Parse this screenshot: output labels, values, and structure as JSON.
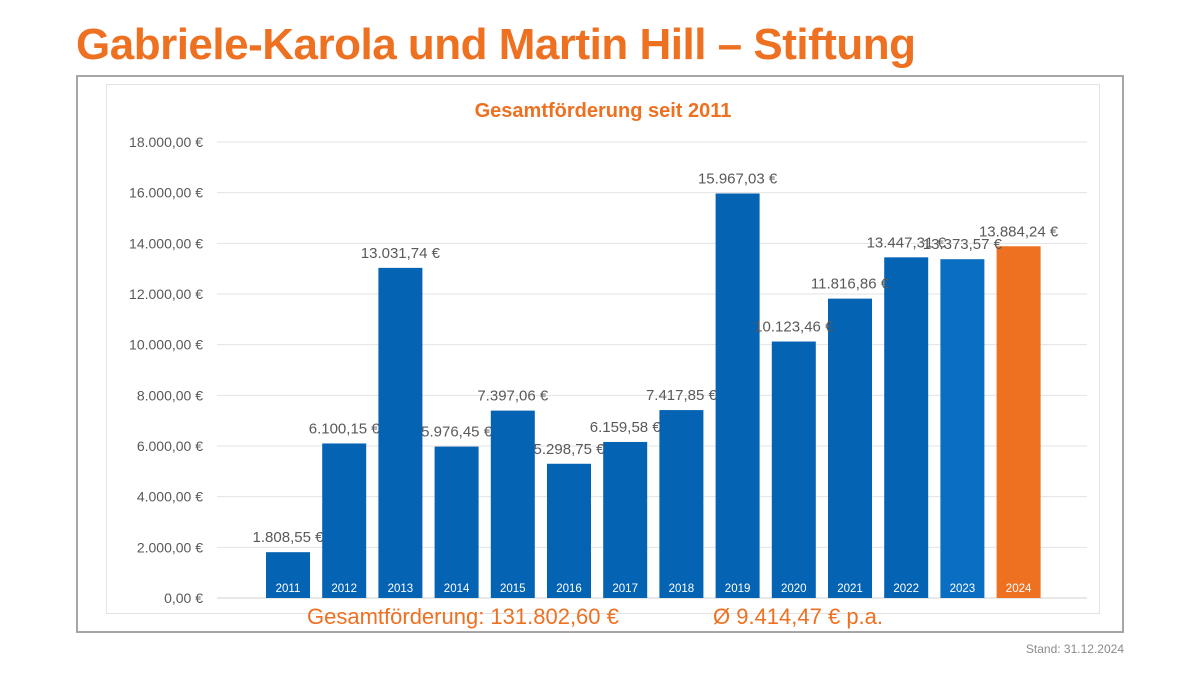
{
  "page": {
    "title": "Gabriele-Karola und Martin Hill – Stiftung",
    "stand": "Stand: 31.12.2024"
  },
  "colors": {
    "accent": "#ee7021",
    "bar": "#0563b4",
    "bar_alt": "#0a6fc2",
    "highlight": "#ee7021"
  },
  "chart_data": {
    "type": "bar",
    "title": "Gesamtförderung seit 2011",
    "categories": [
      "2011",
      "2012",
      "2013",
      "2014",
      "2015",
      "2016",
      "2017",
      "2018",
      "2019",
      "2020",
      "2021",
      "2022",
      "2023",
      "2024"
    ],
    "values": [
      1808.55,
      6100.15,
      13031.74,
      5976.45,
      7397.06,
      5298.75,
      6159.58,
      7417.85,
      15967.03,
      10123.46,
      11816.86,
      13447.31,
      13373.57,
      13884.24
    ],
    "data_labels": [
      "1.808,55 €",
      "6.100,15 €",
      "13.031,74 €",
      "5.976,45 €",
      "7.397,06 €",
      "5.298,75 €",
      "6.159,58 €",
      "7.417,85 €",
      "15.967,03 €",
      "10.123,46 €",
      "11.816,86 €",
      "13.447,31 €",
      "13.373,57 €",
      "13.884,24 €"
    ],
    "highlight_index": 13,
    "ylim": [
      0,
      18000
    ],
    "yticks": [
      0,
      2000,
      4000,
      6000,
      8000,
      10000,
      12000,
      14000,
      16000,
      18000
    ],
    "ytick_labels": [
      "0,00 €",
      "2.000,00 €",
      "4.000,00 €",
      "6.000,00 €",
      "8.000,00 €",
      "10.000,00 €",
      "12.000,00 €",
      "14.000,00 €",
      "16.000,00 €",
      "18.000,00 €"
    ],
    "xlabel": "",
    "ylabel": "",
    "grid": true,
    "summary_total": "Gesamtförderung: 131.802,60 €",
    "summary_average": "Ø 9.414,47 € p.a."
  }
}
